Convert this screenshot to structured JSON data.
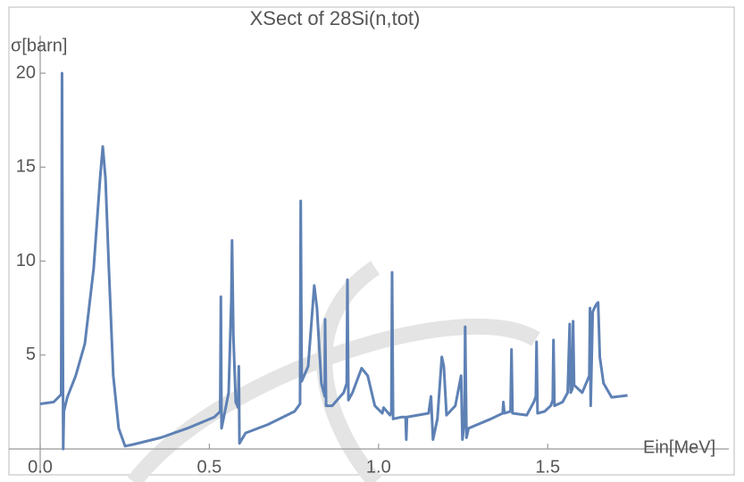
{
  "chart_data": {
    "type": "line",
    "title": "XSect of 28Si(n,tot)",
    "y_label": "σ[barn]",
    "x_label": "Ein[MeV]",
    "xlim": [
      0,
      2.03
    ],
    "ylim": [
      0,
      20
    ],
    "xticks": [
      {
        "value": 0,
        "label": "0.0"
      },
      0.5,
      {
        "value": 1,
        "label": "1.0"
      },
      1.5
    ],
    "yticks": [
      5,
      10,
      15,
      20
    ],
    "color": "#5e81b5",
    "x": [
      0,
      0.04,
      0.062,
      0.0645,
      0.068,
      0.07,
      0.08,
      0.105,
      0.132,
      0.158,
      0.177,
      0.185,
      0.193,
      0.203,
      0.216,
      0.232,
      0.251,
      0.277,
      0.356,
      0.435,
      0.515,
      0.532,
      0.534,
      0.536,
      0.545,
      0.557,
      0.565,
      0.567,
      0.571,
      0.578,
      0.585,
      0.587,
      0.589,
      0.607,
      0.673,
      0.752,
      0.768,
      0.77,
      0.773,
      0.792,
      0.81,
      0.818,
      0.831,
      0.841,
      0.842,
      0.845,
      0.863,
      0.897,
      0.906,
      0.908,
      0.911,
      0.923,
      0.95,
      0.968,
      0.989,
      1.011,
      1.015,
      1.034,
      1.038,
      1.04,
      1.043,
      1.069,
      1.08,
      1.082,
      1.084,
      1.148,
      1.155,
      1.161,
      1.174,
      1.187,
      1.193,
      1.201,
      1.227,
      1.244,
      1.248,
      1.254,
      1.256,
      1.26,
      1.266,
      1.332,
      1.367,
      1.369,
      1.372,
      1.39,
      1.393,
      1.396,
      1.438,
      1.459,
      1.465,
      1.467,
      1.47,
      1.491,
      1.509,
      1.515,
      1.517,
      1.52,
      1.544,
      1.559,
      1.565,
      1.568,
      1.573,
      1.575,
      1.578,
      1.602,
      1.623,
      1.625,
      1.627,
      1.633,
      1.638,
      1.644,
      1.649,
      1.654,
      1.665,
      1.689,
      1.736
    ],
    "values": [
      2.4,
      2.5,
      2.9,
      20,
      0,
      2.0,
      2.75,
      3.9,
      5.6,
      9.6,
      14.4,
      16.1,
      14.4,
      9.6,
      3.9,
      1.1,
      0.15,
      0.25,
      0.6,
      1.1,
      1.7,
      2.0,
      8.1,
      1.1,
      1.9,
      3.0,
      8,
      11.1,
      6,
      2.5,
      2.2,
      4.4,
      0.3,
      0.85,
      1.3,
      2.0,
      2.4,
      13.2,
      3.6,
      4.4,
      8.7,
      7.5,
      3.5,
      2.8,
      6.9,
      2.3,
      2.3,
      3.0,
      3.5,
      9.0,
      2.6,
      3.0,
      4.3,
      3.9,
      2.3,
      1.9,
      2.2,
      1.8,
      2.0,
      9.4,
      1.6,
      1.7,
      1.7,
      0.5,
      1.7,
      1.9,
      2.8,
      0.5,
      1.6,
      4.9,
      4.4,
      1.8,
      2.3,
      3.9,
      0.5,
      1.5,
      6.5,
      0.6,
      1.1,
      1.6,
      1.9,
      2.5,
      1.9,
      2.0,
      5.3,
      1.9,
      1.8,
      2.5,
      2.8,
      5.7,
      1.9,
      2.0,
      2.3,
      2.6,
      5.8,
      2.3,
      2.5,
      3.0,
      6.65,
      3.0,
      3.2,
      6.8,
      3.4,
      3.0,
      3.9,
      7.5,
      2.3,
      7.3,
      7.5,
      7.7,
      7.8,
      4.9,
      3.5,
      2.75,
      2.85
    ]
  }
}
